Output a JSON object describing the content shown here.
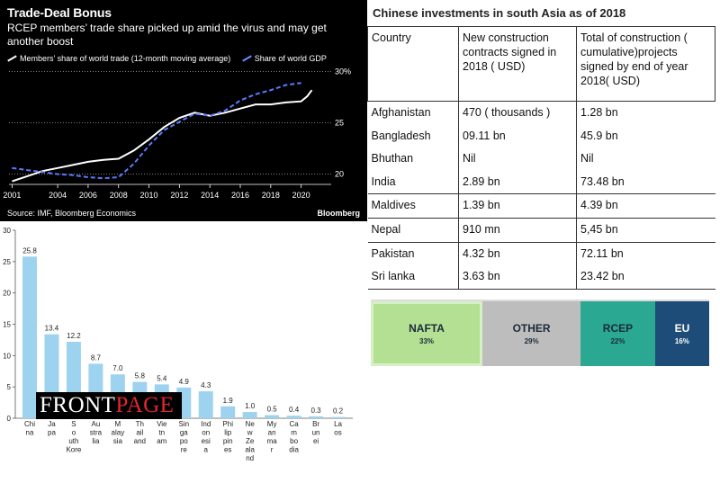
{
  "bloomberg": {
    "title": "Trade-Deal Bonus",
    "subtitle": "RCEP members’ trade share picked up amid the virus and may get another boost",
    "legend": [
      "Members’ share of world trade (12-month moving average)",
      "Share of world GDP"
    ],
    "source": "Source: IMF, Bloomberg Economics",
    "brand": "Bloomberg",
    "colors": {
      "background": "#000000",
      "trade": "#ffffff",
      "gdp": "#5b7bff"
    }
  },
  "bar_chart": {
    "colors": {
      "bar": "#9ed3ef"
    }
  },
  "frontpage": {
    "front": "FRONT",
    "page": "PAGE"
  },
  "table": {
    "title": "Chinese investments in south Asia as of 2018",
    "headers": [
      "Country",
      "New construction contracts signed in 2018 ( USD)",
      "Total of construction ( cumulative)projects signed  by end of year 2018( USD)"
    ],
    "rows": [
      [
        "Afghanistan",
        "470 ( thousands )",
        "1.28 bn"
      ],
      [
        "Bangladesh",
        "09.11 bn",
        "45.9 bn"
      ],
      [
        "Bhuthan",
        "Nil",
        "Nil"
      ],
      [
        "India",
        "2.89 bn",
        "73.48 bn"
      ],
      [
        "Maldives",
        "1.39 bn",
        "4.39 bn"
      ],
      [
        "Nepal",
        "910 mn",
        "5,45 bn"
      ],
      [
        "Pakistan",
        "4.32 bn",
        "72.11 bn"
      ],
      [
        "Sri lanka",
        "3.63 bn",
        "23.42 bn"
      ]
    ]
  },
  "share_bar": [
    {
      "name": "NAFTA",
      "pct": "33%",
      "value": 33,
      "color": "#b3e093"
    },
    {
      "name": "OTHER",
      "pct": "29%",
      "value": 29,
      "color": "#bdbdbd"
    },
    {
      "name": "RCEP",
      "pct": "22%",
      "value": 22,
      "color": "#2aa891"
    },
    {
      "name": "EU",
      "pct": "16%",
      "value": 16,
      "color": "#1d4c78"
    }
  ],
  "chart_data": [
    {
      "type": "line",
      "x_ticks": [
        "2001",
        "2004",
        "2006",
        "2008",
        "2010",
        "2012",
        "2014",
        "2016",
        "2018",
        "2020"
      ],
      "y_ticks": [
        "20",
        "25",
        "30%"
      ],
      "ylim": [
        19,
        30.5
      ],
      "xlim": [
        2000.8,
        2021.5
      ],
      "series": [
        {
          "name": "Members’ share of world trade (12-month moving average)",
          "points": [
            [
              2001,
              19.3
            ],
            [
              2002,
              19.8
            ],
            [
              2003,
              20.3
            ],
            [
              2004,
              20.6
            ],
            [
              2005,
              20.9
            ],
            [
              2006,
              21.2
            ],
            [
              2007,
              21.4
            ],
            [
              2008,
              21.5
            ],
            [
              2009,
              22.3
            ],
            [
              2010,
              23.4
            ],
            [
              2011,
              24.6
            ],
            [
              2012,
              25.5
            ],
            [
              2013,
              26.0
            ],
            [
              2014,
              25.7
            ],
            [
              2015,
              26.0
            ],
            [
              2016,
              26.4
            ],
            [
              2017,
              26.8
            ],
            [
              2018,
              26.8
            ],
            [
              2019,
              27.0
            ],
            [
              2020,
              27.1
            ],
            [
              2020.4,
              27.6
            ],
            [
              2020.7,
              28.2
            ]
          ]
        },
        {
          "name": "Share of world GDP",
          "points": [
            [
              2001,
              20.6
            ],
            [
              2002,
              20.4
            ],
            [
              2003,
              20.2
            ],
            [
              2004,
              20.0
            ],
            [
              2005,
              19.9
            ],
            [
              2006,
              19.7
            ],
            [
              2007,
              19.6
            ],
            [
              2008,
              19.7
            ],
            [
              2009,
              21.0
            ],
            [
              2010,
              22.8
            ],
            [
              2011,
              24.3
            ],
            [
              2012,
              25.1
            ],
            [
              2013,
              25.9
            ],
            [
              2014,
              25.7
            ],
            [
              2015,
              26.2
            ],
            [
              2016,
              27.2
            ],
            [
              2017,
              27.8
            ],
            [
              2018,
              28.2
            ],
            [
              2019,
              28.7
            ],
            [
              2020,
              28.9
            ]
          ]
        }
      ]
    },
    {
      "type": "bar",
      "categories": [
        "Chi na",
        "Ja pa",
        "S o uth Kore",
        "Au stra lia",
        "M alay sia",
        "Th ail and",
        "Vie tn am",
        "Sin ga po re",
        "Ind on esi a",
        "Phi lip pin es",
        "Ne w Ze ala nd",
        "My an ma r",
        "Ca m bo dia",
        "Br un ei",
        "La os"
      ],
      "values": [
        25.8,
        13.4,
        12.2,
        8.7,
        7.0,
        5.8,
        5.4,
        4.9,
        4.3,
        1.9,
        1.0,
        0.5,
        0.4,
        0.3,
        0.2
      ],
      "ylim": [
        0,
        30
      ],
      "y_ticks": [
        "0",
        "5",
        "10",
        "15",
        "20",
        "25",
        "30"
      ]
    }
  ]
}
